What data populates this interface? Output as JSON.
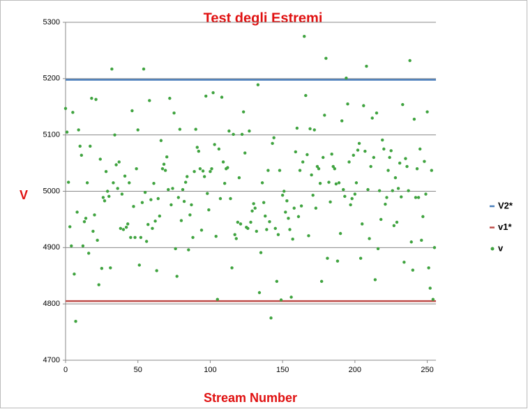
{
  "chart_data": {
    "type": "scatter",
    "title": "Test degli Estremi",
    "x_label": "Stream Number",
    "y_label": "V",
    "xlim": [
      0,
      256
    ],
    "xticks": [
      0,
      50,
      100,
      150,
      200,
      250
    ],
    "ylim": [
      4700,
      5300
    ],
    "yticks": [
      4700,
      4800,
      4900,
      5000,
      5100,
      5200,
      5300
    ],
    "grid": true,
    "legend": "right",
    "series": [
      {
        "name": "V2*",
        "color": "#4a7ebb",
        "style": "line",
        "x": [
          0,
          256
        ],
        "values": [
          5198,
          5198
        ]
      },
      {
        "name": "v1*",
        "color": "#be4b48",
        "style": "line",
        "x": [
          0,
          256
        ],
        "values": [
          4805,
          4805
        ]
      },
      {
        "name": "v",
        "color": "#3fa33f",
        "style": "markers",
        "x": [
          0,
          1,
          2,
          3,
          4,
          5,
          6,
          7,
          8,
          9,
          10,
          11,
          12,
          13,
          14,
          15,
          16,
          17,
          18,
          19,
          20,
          21,
          22,
          23,
          24,
          25,
          26,
          27,
          28,
          29,
          30,
          31,
          32,
          33,
          34,
          35,
          36,
          37,
          38,
          39,
          40,
          41,
          42,
          43,
          44,
          45,
          46,
          47,
          48,
          49,
          50,
          51,
          52,
          53,
          54,
          55,
          56,
          57,
          58,
          59,
          60,
          61,
          62,
          63,
          64,
          65,
          66,
          67,
          68,
          69,
          70,
          71,
          72,
          73,
          74,
          75,
          76,
          77,
          78,
          79,
          80,
          81,
          82,
          83,
          84,
          85,
          86,
          87,
          88,
          89,
          90,
          91,
          92,
          93,
          94,
          95,
          96,
          97,
          98,
          99,
          100,
          101,
          102,
          103,
          104,
          105,
          106,
          107,
          108,
          109,
          110,
          111,
          112,
          113,
          114,
          115,
          116,
          117,
          118,
          119,
          120,
          121,
          122,
          123,
          124,
          125,
          126,
          127,
          128,
          129,
          130,
          131,
          132,
          133,
          134,
          135,
          136,
          137,
          138,
          139,
          140,
          141,
          142,
          143,
          144,
          145,
          146,
          147,
          148,
          149,
          150,
          151,
          152,
          153,
          154,
          155,
          156,
          157,
          158,
          159,
          160,
          161,
          162,
          163,
          164,
          165,
          166,
          167,
          168,
          169,
          170,
          171,
          172,
          173,
          174,
          175,
          176,
          177,
          178,
          179,
          180,
          181,
          182,
          183,
          184,
          185,
          186,
          187,
          188,
          189,
          190,
          191,
          192,
          193,
          194,
          195,
          196,
          197,
          198,
          199,
          200,
          201,
          202,
          203,
          204,
          205,
          206,
          207,
          208,
          209,
          210,
          211,
          212,
          213,
          214,
          215,
          216,
          217,
          218,
          219,
          220,
          221,
          222,
          223,
          224,
          225,
          226,
          227,
          228,
          229,
          230,
          231,
          232,
          233,
          234,
          235,
          236,
          237,
          238,
          239,
          240,
          241,
          242,
          243,
          244,
          245,
          246,
          247,
          248,
          249,
          250,
          251,
          252,
          253,
          254,
          255
        ],
        "values": [
          5147,
          5105,
          5016,
          4937,
          4903,
          5140,
          4853,
          4769,
          4963,
          5109,
          5080,
          5064,
          4903,
          4946,
          4952,
          5015,
          4890,
          5080,
          5165,
          4929,
          4958,
          5163,
          4913,
          4834,
          5057,
          4863,
          4989,
          4983,
          5035,
          5000,
          4991,
          4864,
          5217,
          5015,
          5100,
          5047,
          5005,
          5052,
          4934,
          4995,
          4932,
          5027,
          4936,
          4942,
          5015,
          4918,
          5143,
          4973,
          4918,
          5040,
          5109,
          4869,
          4918,
          4980,
          5217,
          4998,
          4911,
          4941,
          5161,
          4985,
          4934,
          5014,
          4947,
          4859,
          4987,
          4956,
          5090,
          5040,
          5048,
          5037,
          5061,
          5003,
          5165,
          4976,
          5005,
          5139,
          4898,
          4849,
          4989,
          5110,
          4948,
          5003,
          4982,
          5016,
          5026,
          4896,
          4958,
          4976,
          4918,
          5035,
          5110,
          5078,
          5071,
          5040,
          4931,
          5036,
          5026,
          5169,
          4996,
          4967,
          5035,
          5040,
          5175,
          5083,
          4920,
          4808,
          5075,
          4987,
          5167,
          5052,
          5014,
          5040,
          5042,
          5107,
          4987,
          4864,
          5101,
          4923,
          4916,
          4945,
          5024,
          4942,
          5101,
          5141,
          5068,
          4936,
          4934,
          5107,
          4945,
          4965,
          4978,
          4970,
          4929,
          5189,
          4820,
          4891,
          5015,
          4980,
          4956,
          4932,
          5037,
          4946,
          4775,
          5085,
          5095,
          4934,
          4840,
          4923,
          5037,
          4807,
          4993,
          5000,
          4963,
          4983,
          4952,
          4932,
          4812,
          4915,
          4970,
          5070,
          5112,
          4955,
          5037,
          4974,
          5052,
          5275,
          5170,
          5065,
          4921,
          5111,
          5029,
          4993,
          5109,
          4970,
          5044,
          5040,
          5014,
          4840,
          5060,
          5135,
          5236,
          4881,
          5016,
          4981,
          5066,
          5044,
          5040,
          5013,
          4876,
          5015,
          4925,
          5125,
          5003,
          4991,
          5201,
          5155,
          5052,
          4976,
          4987,
          5064,
          4995,
          5015,
          5073,
          5085,
          4881,
          4942,
          5152,
          5071,
          5222,
          5003,
          4916,
          5044,
          5130,
          5060,
          4843,
          5139,
          4898,
          5001,
          4950,
          5091,
          5075,
          4977,
          4989,
          5037,
          5060,
          5072,
          5001,
          4939,
          5024,
          4945,
          5005,
          5050,
          4990,
          5154,
          4874,
          5058,
          5044,
          5001,
          5232,
          4910,
          4860,
          5128,
          4989,
          5040,
          4989,
          5075,
          4913,
          4955,
          5053,
          4995,
          5141,
          4864,
          4828,
          5037,
          4808,
          4900
        ]
      }
    ]
  }
}
